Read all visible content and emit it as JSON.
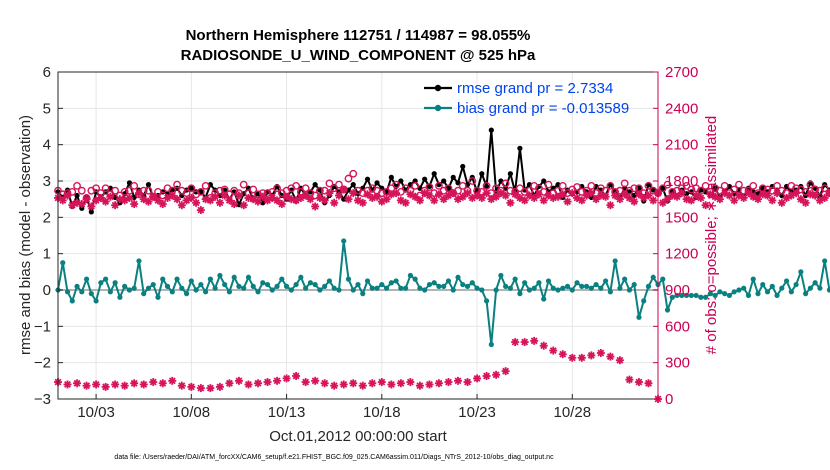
{
  "chart_data": {
    "type": "line",
    "title": "Northern Hemisphere 112751 / 114987 = 98.055%",
    "subtitle": "RADIOSONDE_U_WIND_COMPONENT @ 525 hPa",
    "xlabel": "Oct.01,2012 00:00:00 start",
    "ylabel": "rmse and bias (model - observation)",
    "ylabel_right": "# of obs: o=possible; ∗=assimilated",
    "footnote": "data file: /Users/raeder/DAI/ATM_forcXX/CAM6_setup/f.e21.FHIST_BGC.f09_025.CAM6assim.011/Diags_NTrS_2012-10/obs_diag_output.nc",
    "xlim": [
      1.0,
      32.5
    ],
    "ylim": [
      -3,
      6
    ],
    "ylim_right": [
      0,
      2700
    ],
    "xticks": [
      3,
      8,
      13,
      18,
      23,
      28
    ],
    "xtick_labels": [
      "10/03",
      "10/08",
      "10/13",
      "10/18",
      "10/23",
      "10/28"
    ],
    "yticks": [
      -3,
      -2,
      -1,
      0,
      1,
      2,
      3,
      4,
      5,
      6
    ],
    "yticks_right": [
      0,
      300,
      600,
      900,
      1200,
      1500,
      1800,
      2100,
      2400,
      2700
    ],
    "legend": [
      "rmse grand pr = 2.7334",
      "bias grand pr = -0.013589"
    ],
    "x_start": 1.0,
    "x_step": 0.25,
    "series": [
      {
        "name": "rmse",
        "axis": "left",
        "color": "#000000",
        "values": [
          2.7,
          2.55,
          2.75,
          2.3,
          2.6,
          2.25,
          2.55,
          2.15,
          2.7,
          2.55,
          2.7,
          2.8,
          2.55,
          2.4,
          2.65,
          2.95,
          2.55,
          2.75,
          2.6,
          2.9,
          2.55,
          2.6,
          2.7,
          2.65,
          2.75,
          2.8,
          2.6,
          2.75,
          2.8,
          2.7,
          2.7,
          2.55,
          2.9,
          2.75,
          2.6,
          2.75,
          2.5,
          2.7,
          2.35,
          2.65,
          2.8,
          2.5,
          2.65,
          2.4,
          2.7,
          2.6,
          2.85,
          2.6,
          2.5,
          2.75,
          2.45,
          2.8,
          2.6,
          2.7,
          2.9,
          2.75,
          2.4,
          2.6,
          2.85,
          2.7,
          2.5,
          2.75,
          2.9,
          2.65,
          2.8,
          3.05,
          2.75,
          2.95,
          2.8,
          2.7,
          3.1,
          2.85,
          3.0,
          2.75,
          2.9,
          3.0,
          2.8,
          3.05,
          2.85,
          3.2,
          2.9,
          3.0,
          2.8,
          3.1,
          2.95,
          3.4,
          2.9,
          3.1,
          2.7,
          3.2,
          2.85,
          4.4,
          2.7,
          3.0,
          2.8,
          3.2,
          2.7,
          3.9,
          2.75,
          2.9,
          2.6,
          2.85,
          3.0,
          2.7,
          2.8,
          2.9,
          2.55,
          2.75,
          2.65,
          2.7,
          2.85,
          2.7,
          2.55,
          2.85,
          2.75,
          2.6,
          2.9,
          2.7,
          2.55,
          2.8,
          2.7,
          2.6,
          2.8,
          2.45,
          2.9,
          2.75,
          2.65,
          2.8,
          2.45,
          2.7,
          2.6,
          2.75,
          2.65,
          2.7,
          2.55,
          2.75,
          2.7,
          2.6,
          2.8,
          2.55,
          2.7,
          2.85,
          2.65,
          2.75,
          2.55,
          2.8,
          2.7,
          2.65,
          2.8,
          2.7,
          2.85,
          2.75,
          2.6,
          2.85,
          2.7,
          2.75,
          2.85,
          2.6,
          2.95,
          2.8,
          2.6,
          2.9,
          2.75,
          2.85,
          2.95,
          2.8,
          2.35,
          3.0,
          3.15,
          2.9,
          3.1,
          3.05
        ]
      },
      {
        "name": "bias",
        "axis": "left",
        "color": "#0b8080",
        "values": [
          0.0,
          0.75,
          -0.05,
          -0.3,
          0.1,
          -0.05,
          0.3,
          -0.1,
          -0.3,
          0.2,
          0.3,
          -0.05,
          0.2,
          -0.2,
          0.1,
          0.0,
          0.05,
          0.8,
          -0.1,
          0.05,
          0.15,
          -0.2,
          0.3,
          0.1,
          -0.05,
          0.3,
          0.05,
          -0.1,
          0.25,
          0.0,
          0.15,
          -0.05,
          0.3,
          0.05,
          0.4,
          0.15,
          -0.05,
          0.35,
          0.1,
          0.05,
          0.35,
          0.1,
          -0.05,
          0.2,
          0.15,
          0.0,
          0.1,
          0.3,
          0.1,
          0.0,
          0.15,
          0.35,
          0.05,
          0.2,
          0.15,
          0.0,
          0.1,
          0.25,
          0.05,
          0.0,
          1.35,
          0.3,
          0.0,
          0.15,
          -0.1,
          0.25,
          0.05,
          0.05,
          0.15,
          0.05,
          0.2,
          0.25,
          0.05,
          0.05,
          0.4,
          0.3,
          0.05,
          0.0,
          0.15,
          0.2,
          0.1,
          0.1,
          0.25,
          0.0,
          0.35,
          0.15,
          0.1,
          0.2,
          0.05,
          0.0,
          -0.3,
          -1.5,
          0.0,
          0.4,
          0.1,
          0.05,
          0.3,
          -0.1,
          0.2,
          0.0,
          0.05,
          0.2,
          -0.25,
          0.25,
          0.05,
          0.0,
          0.05,
          0.1,
          0.0,
          0.2,
          0.1,
          0.1,
          0.05,
          0.15,
          0.05,
          0.25,
          -0.05,
          0.8,
          0.05,
          0.3,
          0.0,
          0.15,
          -0.75,
          -0.3,
          0.1,
          0.35,
          0.15,
          0.3,
          -0.55,
          -0.2,
          -0.15,
          -0.15,
          -0.15,
          -0.15,
          -0.15,
          -0.2,
          -0.2,
          -0.1,
          -0.15,
          -0.05,
          -0.1,
          -0.15,
          -0.05,
          0.0,
          0.05,
          -0.15,
          0.3,
          -0.1,
          0.15,
          -0.05,
          0.1,
          -0.15,
          0.05,
          0.25,
          -0.05,
          0.15,
          0.5,
          -0.1,
          0.05,
          0.2,
          0.05,
          0.8,
          0.0,
          0.25,
          0.8,
          0.05,
          -0.25
        ]
      },
      {
        "name": "possible",
        "axis": "right",
        "color": "#d6145a",
        "marker": "o",
        "values": [
          1720,
          1690,
          1700,
          1710,
          1760,
          1720,
          1660,
          1720,
          1740,
          1700,
          1740,
          1690,
          1720,
          1680,
          1710,
          1720,
          1760,
          1690,
          1720,
          1720,
          1670,
          1710,
          1680,
          1740,
          1720,
          1770,
          1720,
          1700,
          1740,
          1690,
          1710,
          1760,
          1660,
          1700,
          1720,
          1730,
          1690,
          1720,
          1700,
          1770,
          1700,
          1730,
          1690,
          1700,
          1700,
          1710,
          1740,
          1700,
          1720,
          1740,
          1760,
          1710,
          1740,
          1700,
          1680,
          1720,
          1720,
          1780,
          1740,
          1770,
          1730,
          1820,
          1860,
          1720,
          1700,
          1720,
          1740,
          1720,
          1700,
          1710,
          1740,
          1770,
          1710,
          1740,
          1720,
          1760,
          1680,
          1720,
          1750,
          1700,
          1760,
          1720,
          1740,
          1700,
          1720,
          1760,
          1720,
          1800,
          1720,
          1710,
          1760,
          1700,
          1740,
          1720,
          1780,
          1720,
          1710,
          1740,
          1710,
          1720,
          1760,
          1740,
          1710,
          1770,
          1700,
          1720,
          1760,
          1700,
          1730,
          1750,
          1710,
          1720,
          1760,
          1700,
          1740,
          1720,
          1760,
          1710,
          1720,
          1780,
          1720,
          1740,
          1740,
          1700,
          1760,
          1720,
          1700,
          1740,
          1770,
          1710,
          1720,
          1740,
          1760,
          1730,
          1740,
          1720,
          1760,
          1710,
          1740,
          1720,
          1760,
          1700,
          1730,
          1770,
          1720,
          1720,
          1760,
          1700,
          1740,
          1730,
          1720,
          1760,
          1720,
          1700,
          1760,
          1740,
          1730,
          1710,
          1770,
          1730,
          1720,
          1740,
          1700,
          1710,
          1740,
          1700,
          1720,
          1760,
          1740,
          1720,
          1700
        ]
      },
      {
        "name": "assimilated",
        "axis": "right",
        "color": "#d6145a",
        "marker": "*",
        "values": [
          1660,
          1640,
          1680,
          1600,
          1620,
          1610,
          1650,
          1590,
          1640,
          1660,
          1630,
          1670,
          1600,
          1650,
          1640,
          1660,
          1610,
          1700,
          1650,
          1630,
          1670,
          1640,
          1610,
          1660,
          1680,
          1650,
          1600,
          1640,
          1660,
          1620,
          1560,
          1650,
          1640,
          1670,
          1620,
          1680,
          1640,
          1610,
          1680,
          1600,
          1660,
          1650,
          1630,
          1670,
          1640,
          1660,
          1640,
          1610,
          1670,
          1650,
          1640,
          1660,
          1680,
          1650,
          1590,
          1660,
          1640,
          1700,
          1620,
          1680,
          1730,
          1650,
          1700,
          1640,
          1620,
          1690,
          1660,
          1670,
          1630,
          1650,
          1690,
          1700,
          1640,
          1620,
          1690,
          1670,
          1640,
          1700,
          1680,
          1640,
          1690,
          1650,
          1680,
          1700,
          1650,
          1670,
          1700,
          1660,
          1680,
          1660,
          1700,
          1650,
          1670,
          1700,
          1680,
          1620,
          1690,
          1660,
          1640,
          1680,
          1660,
          1690,
          1640,
          1680,
          1660,
          1670,
          1690,
          1630,
          1700,
          1660,
          1640,
          1680,
          1700,
          1650,
          1680,
          1670,
          1600,
          1680,
          1650,
          1690,
          1660,
          1630,
          1690,
          1660,
          1680,
          1640,
          1700,
          1620,
          1650,
          1680,
          1670,
          1700,
          1650,
          1640,
          1680,
          1660,
          1600,
          1690,
          1670,
          1650,
          1700,
          1680,
          1640,
          1680,
          1660,
          1700,
          1670,
          1650,
          1690,
          1680,
          1640,
          1700,
          1620,
          1660,
          1680,
          1700,
          1650,
          1620,
          1690,
          1680,
          1640,
          1660,
          1700,
          1650,
          1680,
          1620,
          1680,
          1660,
          1700,
          1680,
          1640
        ]
      },
      {
        "name": "rejected-low",
        "axis": "right",
        "color": "#d6145a",
        "marker": "*",
        "x": [
          1.0,
          1.5,
          2.0,
          2.5,
          3.0,
          3.5,
          4.0,
          4.5,
          5.0,
          5.5,
          6.0,
          6.5,
          7.0,
          7.5,
          8.0,
          8.5,
          9.0,
          9.5,
          10.0,
          10.5,
          11.0,
          11.5,
          12.0,
          12.5,
          13.0,
          13.5,
          14.0,
          14.5,
          15.0,
          15.5,
          16.0,
          16.5,
          17.0,
          17.5,
          18.0,
          18.5,
          19.0,
          19.5,
          20.0,
          20.5,
          21.0,
          21.5,
          22.0,
          22.5,
          23.0,
          23.5,
          24.0,
          24.5,
          25.0,
          25.5,
          26.0,
          26.5,
          27.0,
          27.5,
          28.0,
          28.5,
          29.0,
          29.5,
          30.0,
          30.5,
          31.0,
          31.5,
          32.0,
          32.5
        ],
        "values": [
          140,
          120,
          130,
          110,
          120,
          100,
          120,
          110,
          130,
          120,
          140,
          130,
          150,
          110,
          100,
          90,
          90,
          100,
          130,
          150,
          120,
          130,
          140,
          150,
          170,
          190,
          140,
          150,
          130,
          110,
          120,
          130,
          110,
          130,
          140,
          120,
          130,
          140,
          110,
          120,
          130,
          140,
          150,
          140,
          170,
          190,
          200,
          230,
          470,
          470,
          480,
          440,
          400,
          370,
          340,
          340,
          360,
          380,
          350,
          320,
          160,
          140,
          130,
          0
        ]
      }
    ]
  }
}
